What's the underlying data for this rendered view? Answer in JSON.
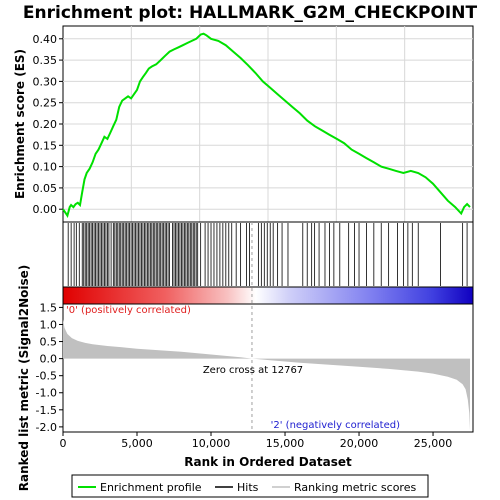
{
  "title": "Enrichment plot: HALLMARK_G2M_CHECKPOINT",
  "colors": {
    "es_line": "#00e000",
    "hits": "#000000",
    "metric_fill": "#c0c0c0",
    "pos_label": "#e02020",
    "neg_label": "#2020d0",
    "zero_dash": "#a0a0a0"
  },
  "chart_data": [
    {
      "type": "line",
      "name": "enrichment-profile",
      "ylabel": "Enrichment score (ES)",
      "xlim": [
        0,
        27700
      ],
      "ylim": [
        -0.03,
        0.43
      ],
      "yticks": [
        0.0,
        0.05,
        0.1,
        0.15,
        0.2,
        0.25,
        0.3,
        0.35,
        0.4
      ],
      "ytick_labels": [
        "0.00",
        "0.05",
        "0.10",
        "0.15",
        "0.20",
        "0.25",
        "0.30",
        "0.35",
        "0.40"
      ],
      "grid": true,
      "x": [
        0,
        300,
        450,
        550,
        700,
        850,
        1000,
        1150,
        1300,
        1450,
        1600,
        1800,
        2000,
        2200,
        2400,
        2600,
        2800,
        3000,
        3200,
        3400,
        3600,
        3800,
        4000,
        4200,
        4400,
        4600,
        4800,
        5000,
        5200,
        5400,
        5600,
        5800,
        6000,
        6300,
        6600,
        6900,
        7200,
        7500,
        7800,
        8100,
        8400,
        8700,
        9000,
        9300,
        9500,
        9700,
        10000,
        10500,
        11000,
        11500,
        12000,
        12500,
        13000,
        13500,
        14000,
        14500,
        15000,
        15500,
        16000,
        16500,
        17000,
        17500,
        18000,
        18500,
        19000,
        19500,
        20000,
        20500,
        21000,
        21500,
        22000,
        22500,
        23000,
        23500,
        24000,
        24500,
        25000,
        25500,
        26000,
        26500,
        26900,
        27100,
        27300,
        27500
      ],
      "y": [
        0.0,
        -0.015,
        0.005,
        0.01,
        0.005,
        0.012,
        0.015,
        0.01,
        0.04,
        0.07,
        0.085,
        0.095,
        0.11,
        0.13,
        0.14,
        0.155,
        0.17,
        0.165,
        0.18,
        0.195,
        0.21,
        0.24,
        0.255,
        0.26,
        0.265,
        0.26,
        0.27,
        0.28,
        0.3,
        0.31,
        0.32,
        0.33,
        0.335,
        0.34,
        0.35,
        0.36,
        0.37,
        0.375,
        0.38,
        0.385,
        0.39,
        0.395,
        0.4,
        0.41,
        0.412,
        0.408,
        0.4,
        0.395,
        0.385,
        0.37,
        0.355,
        0.338,
        0.32,
        0.3,
        0.285,
        0.27,
        0.255,
        0.24,
        0.225,
        0.208,
        0.195,
        0.185,
        0.175,
        0.165,
        0.155,
        0.14,
        0.13,
        0.12,
        0.11,
        0.1,
        0.095,
        0.09,
        0.085,
        0.09,
        0.085,
        0.075,
        0.06,
        0.04,
        0.02,
        0.005,
        -0.01,
        0.005,
        0.012,
        0.005
      ]
    },
    {
      "type": "hits",
      "name": "gene-set-hits",
      "positions": [
        350,
        550,
        750,
        900,
        1100,
        1300,
        1400,
        1500,
        1600,
        1700,
        1800,
        1900,
        2000,
        2100,
        2200,
        2300,
        2400,
        2500,
        2600,
        2700,
        2800,
        2900,
        3000,
        3100,
        3250,
        3400,
        3500,
        3600,
        3700,
        3800,
        3900,
        4000,
        4100,
        4200,
        4300,
        4400,
        4500,
        4600,
        4700,
        4800,
        4900,
        5000,
        5100,
        5200,
        5300,
        5400,
        5500,
        5600,
        5700,
        5800,
        5900,
        6000,
        6100,
        6200,
        6300,
        6400,
        6500,
        6600,
        6700,
        6800,
        6900,
        7000,
        7100,
        7200,
        7400,
        7500,
        7600,
        7700,
        7800,
        7900,
        8000,
        8100,
        8200,
        8300,
        8400,
        8500,
        8600,
        8700,
        8800,
        8900,
        9000,
        9100,
        9300,
        9600,
        9800,
        10000,
        10200,
        10400,
        10600,
        10800,
        11000,
        11200,
        11400,
        11700,
        12000,
        12400,
        12600,
        13200,
        13400,
        13600,
        13800,
        14000,
        14200,
        14500,
        14800,
        15200,
        16200,
        16500,
        16800,
        17000,
        17300,
        17700,
        18000,
        18300,
        18700,
        19300,
        19700,
        20000,
        20500,
        21000,
        21500,
        22000,
        22600,
        23000,
        23300,
        23600,
        24000,
        25500,
        27000,
        27300
      ]
    },
    {
      "type": "area",
      "name": "ranked-list-metric",
      "ylabel": "Ranked list metric (Signal2Noise)",
      "xlabel": "Rank in Ordered Dataset",
      "xlim": [
        0,
        27700
      ],
      "ylim": [
        -2.15,
        1.6
      ],
      "yticks": [
        1.5,
        1.0,
        0.5,
        0.0,
        -0.5,
        -1.0,
        -1.5,
        -2.0
      ],
      "ytick_labels": [
        "1.5",
        "1.0",
        "0.5",
        "0.0",
        "-0.5",
        "-1.0",
        "-1.5",
        "-2.0"
      ],
      "xticks": [
        0,
        5000,
        10000,
        15000,
        20000,
        25000
      ],
      "xtick_labels": [
        "0",
        "5,000",
        "10,000",
        "15,000",
        "20,000",
        "25,000"
      ],
      "x": [
        0,
        100,
        300,
        600,
        1000,
        1500,
        2000,
        3000,
        4000,
        5000,
        6000,
        8000,
        10000,
        12000,
        12767,
        14000,
        16000,
        18000,
        20000,
        22000,
        24000,
        25000,
        26000,
        26600,
        27000,
        27200,
        27350,
        27450,
        27500
      ],
      "y": [
        1.15,
        0.9,
        0.72,
        0.6,
        0.52,
        0.46,
        0.42,
        0.37,
        0.33,
        0.29,
        0.26,
        0.2,
        0.12,
        0.04,
        0.0,
        -0.05,
        -0.12,
        -0.18,
        -0.24,
        -0.3,
        -0.38,
        -0.44,
        -0.53,
        -0.62,
        -0.75,
        -0.9,
        -1.2,
        -1.6,
        -2.1
      ],
      "zero_cross": 12767,
      "zero_cross_label": "Zero cross at 12767",
      "pos_label": "'0' (positively correlated)",
      "neg_label": "'2' (negatively correlated)"
    }
  ],
  "legend": {
    "placement": "bottom",
    "items": [
      {
        "label": "Enrichment profile",
        "color": "#00e000"
      },
      {
        "label": "Hits",
        "color": "#000000"
      },
      {
        "label": "Ranking metric scores",
        "color": "#c0c0c0"
      }
    ]
  }
}
